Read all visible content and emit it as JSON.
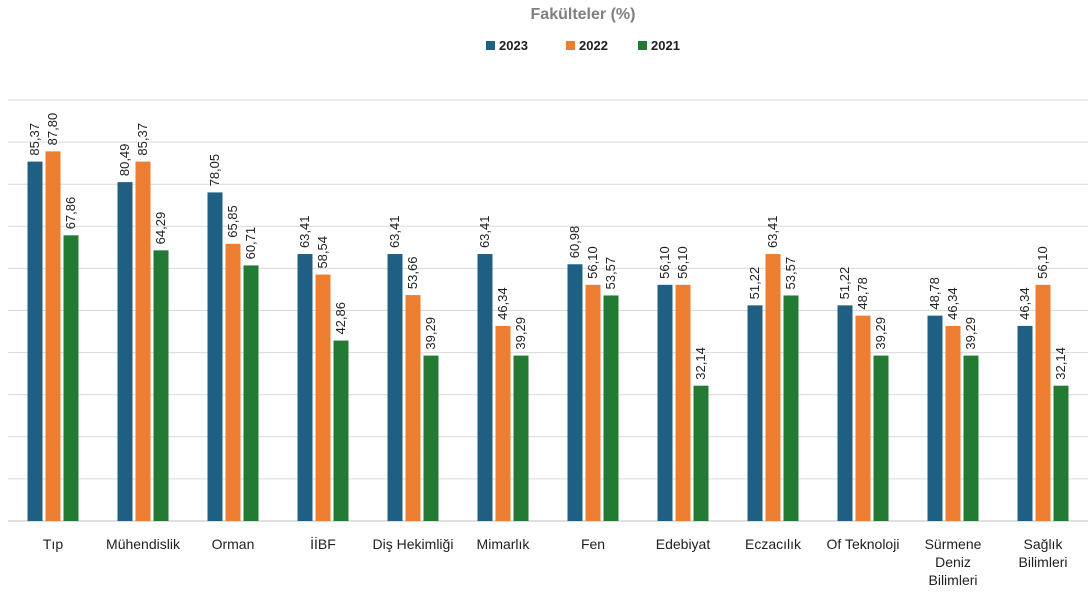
{
  "chart_data": {
    "type": "bar",
    "title": "Fakülteler (%)",
    "categories": [
      "Tıp",
      "Mühendislik",
      "Orman",
      "İİBF",
      "Diş Hekimliği",
      "Mimarlık",
      "Fen",
      "Edebiyat",
      "Eczacılık",
      "Of Teknoloji",
      "Sürmene Deniz Bilimleri",
      "Sağlık Bilimleri"
    ],
    "category_lines": [
      [
        "Tıp"
      ],
      [
        "Mühendislik"
      ],
      [
        "Orman"
      ],
      [
        "İİBF"
      ],
      [
        "Diş Hekimliği"
      ],
      [
        "Mimarlık"
      ],
      [
        "Fen"
      ],
      [
        "Edebiyat"
      ],
      [
        "Eczacılık"
      ],
      [
        "Of Teknoloji"
      ],
      [
        "Sürmene",
        "Deniz",
        "Bilimleri"
      ],
      [
        "Sağlık",
        "Bilimleri"
      ]
    ],
    "series": [
      {
        "name": "2023",
        "color": "#1f5f84",
        "values": [
          85.37,
          80.49,
          78.05,
          63.41,
          63.41,
          63.41,
          60.98,
          56.1,
          51.22,
          51.22,
          48.78,
          46.34
        ],
        "labels": [
          "85,37",
          "80,49",
          "78,05",
          "63,41",
          "63,41",
          "63,41",
          "60,98",
          "56,10",
          "51,22",
          "51,22",
          "48,78",
          "46,34"
        ]
      },
      {
        "name": "2022",
        "color": "#ed7d31",
        "values": [
          87.8,
          85.37,
          65.85,
          58.54,
          53.66,
          46.34,
          56.1,
          56.1,
          63.41,
          48.78,
          46.34,
          56.1
        ],
        "labels": [
          "87,80",
          "85,37",
          "65,85",
          "58,54",
          "53,66",
          "46,34",
          "56,10",
          "56,10",
          "63,41",
          "48,78",
          "46,34",
          "56,10"
        ]
      },
      {
        "name": "2021",
        "color": "#237a33",
        "values": [
          67.86,
          64.29,
          60.71,
          42.86,
          39.29,
          39.29,
          53.57,
          32.14,
          53.57,
          39.29,
          39.29,
          32.14
        ],
        "labels": [
          "67,86",
          "64,29",
          "60,71",
          "42,86",
          "39,29",
          "39,29",
          "53,57",
          "32,14",
          "53,57",
          "39,29",
          "39,29",
          "32,14"
        ]
      }
    ],
    "ylim": [
      0,
      100
    ],
    "grid": true,
    "legend_position": "top-center",
    "data_labels": true
  }
}
